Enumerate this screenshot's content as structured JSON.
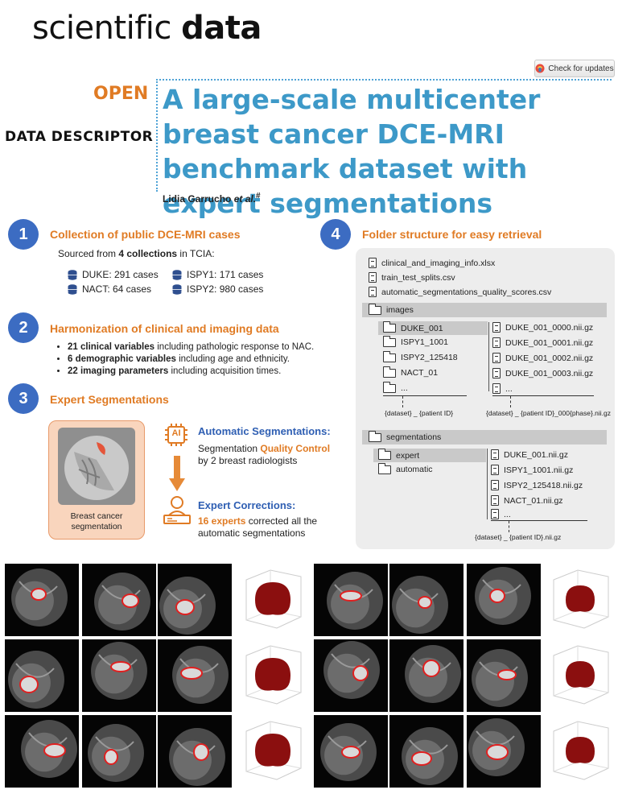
{
  "header": {
    "journal_part1": "scientific",
    "journal_part2": "data",
    "updates_label": "Check for updates",
    "open_label": "OPEN",
    "article_type": "DATA DESCRIPTOR",
    "title": "A large-scale multicenter breast cancer DCE-MRI benchmark dataset with expert segmentations",
    "authors_name": "Lidia Garrucho ",
    "authors_etal": "et al.",
    "authors_mark": "#"
  },
  "section1": {
    "number": "1",
    "title": "Collection of public DCE-MRI cases",
    "source_pre": "Sourced from ",
    "source_bold": "4 collections",
    "source_post": " in TCIA:",
    "collections": [
      {
        "label": "DUKE: 291 cases"
      },
      {
        "label": "ISPY1: 171 cases"
      },
      {
        "label": "NACT: 64 cases"
      },
      {
        "label": "ISPY2: 980 cases"
      }
    ]
  },
  "section2": {
    "number": "2",
    "title": "Harmonization of clinical and imaging data",
    "bullets": [
      {
        "bold": "21 clinical variables",
        "rest": " including pathologic response to NAC."
      },
      {
        "bold": "6 demographic variables",
        "rest": " including age and ethnicity."
      },
      {
        "bold": "22 imaging parameters",
        "rest": " including acquisition times."
      }
    ]
  },
  "section3": {
    "number": "3",
    "title": "Expert Segmentations",
    "card_label": "Breast cancer segmentation",
    "ai_badge": "AI",
    "auto_title": "Automatic Segmentations:",
    "auto_pre": "Segmentation ",
    "auto_hl": "Quality Control",
    "auto_post": "by 2 breast radiologists",
    "expert_title": "Expert Corrections:",
    "expert_hl": "16 experts",
    "expert_post": " corrected all the automatic segmentations"
  },
  "section4": {
    "number": "4",
    "title": "Folder structure for easy retrieval",
    "root_files": [
      "clinical_and_imaging_info.xlsx",
      "train_test_splits.csv",
      "automatic_segmentations_quality_scores.csv"
    ],
    "images_folder": "images",
    "image_subfolders": [
      "DUKE_001",
      "ISPY1_1001",
      "ISPY2_125418",
      "NACT_01",
      "..."
    ],
    "image_files": [
      "DUKE_001_0000.nii.gz",
      "DUKE_001_0001.nii.gz",
      "DUKE_001_0002.nii.gz",
      "DUKE_001_0003.nii.gz",
      "..."
    ],
    "images_note_left": "{dataset} _ {patient ID}",
    "images_note_right": "{dataset} _ {patient ID}_000{phase}.nii.gz",
    "seg_folder": "segmentations",
    "seg_subfolders": [
      "expert",
      "automatic"
    ],
    "seg_files": [
      "DUKE_001.nii.gz",
      "ISPY1_1001.nii.gz",
      "ISPY2_125418.nii.gz",
      "NACT_01.nii.gz",
      "..."
    ],
    "seg_note": "{dataset} _ {patient ID}.nii.gz"
  },
  "colors": {
    "accent_orange": "#e07b24",
    "title_blue": "#3d99c8",
    "circle_blue": "#3c6cc2",
    "segmentation_red": "#e02020",
    "volume_red": "#8b0f0f"
  }
}
